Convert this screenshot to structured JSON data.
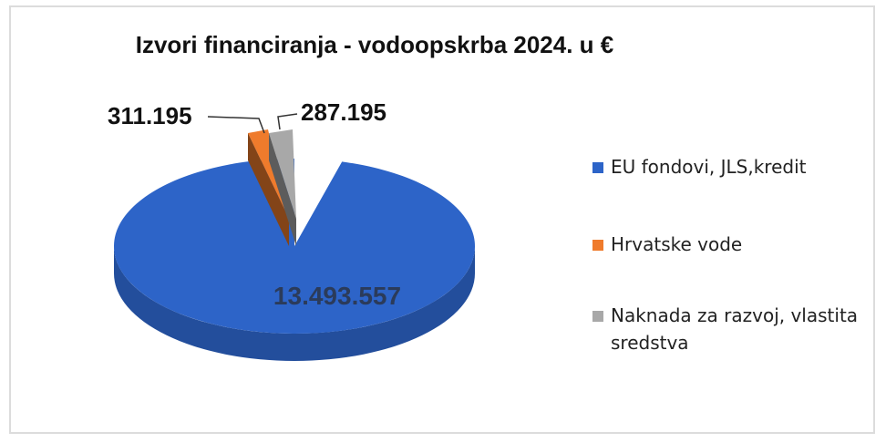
{
  "chart_data": {
    "type": "pie",
    "title": "Izvori financiranja - vodoopskrba 2024. u €",
    "slices": [
      {
        "name": "EU fondovi, JLS,kredit",
        "value": 13493557,
        "label": "13.493.557",
        "color": "#2d64c8"
      },
      {
        "name": "Hrvatske vode",
        "value": 311195,
        "label": "311.195",
        "color": "#ef7b2c"
      },
      {
        "name": "Naknada za razvoj, vlastita sredstva",
        "value": 287195,
        "label": "287.195",
        "color": "#a8a8a8"
      }
    ],
    "legend_position": "right"
  }
}
